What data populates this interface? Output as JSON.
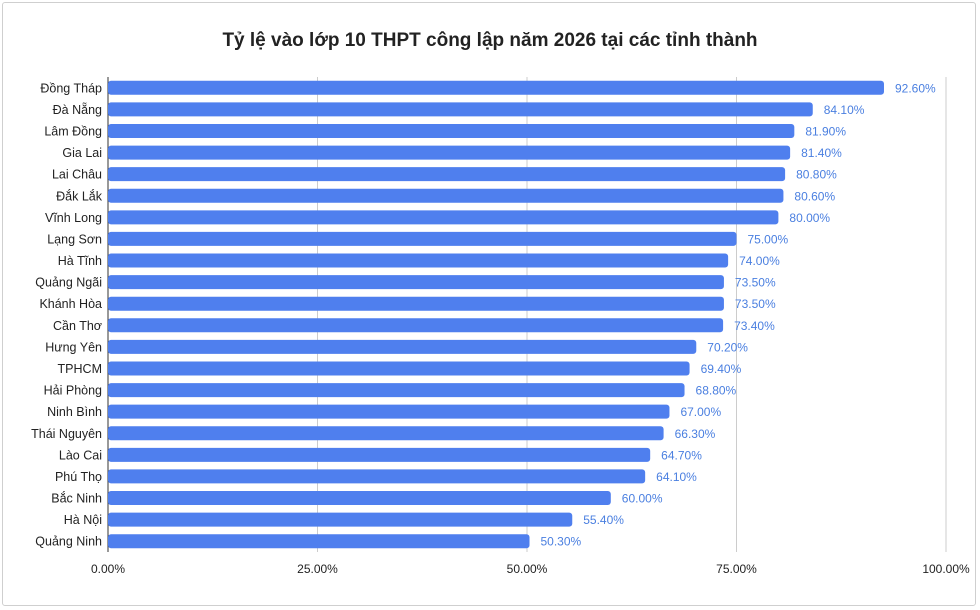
{
  "chart_data": {
    "type": "bar",
    "orientation": "horizontal",
    "title": "Tỷ lệ vào lớp 10 THPT công lập năm 2026 tại các tỉnh thành",
    "categories": [
      "Đồng Tháp",
      "Đà Nẵng",
      "Lâm Đồng",
      "Gia Lai",
      "Lai Châu",
      "Đắk Lắk",
      "Vĩnh Long",
      "Lạng Sơn",
      "Hà Tĩnh",
      "Quảng Ngãi",
      "Khánh Hòa",
      "Cần Thơ",
      "Hưng Yên",
      "TPHCM",
      "Hải Phòng",
      "Ninh Bình",
      "Thái Nguyên",
      "Lào Cai",
      "Phú Thọ",
      "Bắc Ninh",
      "Hà Nội",
      "Quảng Ninh"
    ],
    "values": [
      92.6,
      84.1,
      81.9,
      81.4,
      80.8,
      80.6,
      80.0,
      75.0,
      74.0,
      73.5,
      73.5,
      73.4,
      70.2,
      69.4,
      68.8,
      67.0,
      66.3,
      64.7,
      64.1,
      60.0,
      55.4,
      50.3
    ],
    "value_labels": [
      "92.60%",
      "84.10%",
      "81.90%",
      "81.40%",
      "80.80%",
      "80.60%",
      "80.00%",
      "75.00%",
      "74.00%",
      "73.50%",
      "73.50%",
      "73.40%",
      "70.20%",
      "69.40%",
      "68.80%",
      "67.00%",
      "66.30%",
      "64.70%",
      "64.10%",
      "60.00%",
      "55.40%",
      "50.30%"
    ],
    "xlim": [
      0,
      100
    ],
    "x_ticks": [
      0,
      25,
      50,
      75,
      100
    ],
    "x_tick_labels": [
      "0.00%",
      "25.00%",
      "50.00%",
      "75.00%",
      "100.00%"
    ],
    "bar_color": "#4f7fee",
    "label_color": "#4a7fe0",
    "grid": true
  }
}
